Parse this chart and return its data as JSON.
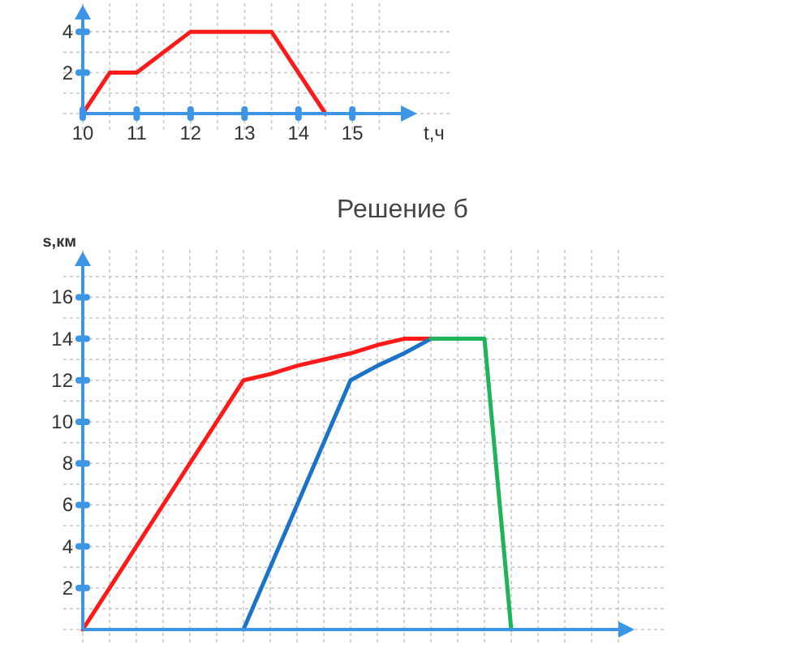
{
  "chart_data": [
    {
      "type": "line",
      "xlabel": "t,ч",
      "x": [
        10,
        10.5,
        11,
        12,
        13.5,
        14.5
      ],
      "xlim": [
        10,
        15.9
      ],
      "ylim": [
        0,
        4.6
      ],
      "xticks": [
        10,
        11,
        12,
        13,
        14,
        15
      ],
      "yticks": [
        2,
        4
      ],
      "grid": true,
      "marker": "none",
      "line_style": "solid",
      "series": [
        {
          "color": "#ff1a1a",
          "values": [
            0,
            2,
            2,
            4,
            4,
            0
          ]
        }
      ]
    },
    {
      "type": "line",
      "title": "Решение б",
      "ylabel": "s,км",
      "categories": [
        null,
        null,
        null,
        null,
        null,
        null,
        null,
        null,
        null,
        null,
        null,
        null,
        null,
        null,
        null,
        null,
        null,
        null,
        null,
        null,
        null
      ],
      "ylim": [
        0,
        17.5
      ],
      "yticks": [
        2,
        4,
        6,
        8,
        10,
        12,
        14,
        16
      ],
      "grid": true,
      "marker": "none",
      "line_style": "solid",
      "tick_labels": "y",
      "series": [
        {
          "color": "#ff1a1a",
          "values": [
            0,
            2,
            4,
            6,
            8,
            10,
            12,
            12.3,
            12.7,
            13,
            13.3,
            13.7,
            14,
            14,
            null,
            null,
            null,
            null,
            null,
            null,
            null
          ]
        },
        {
          "color": "#1a73c8",
          "values": [
            null,
            null,
            null,
            null,
            null,
            null,
            0,
            3,
            6,
            9,
            12,
            12.7,
            13.3,
            14,
            null,
            null,
            null,
            null,
            null,
            null,
            null
          ]
        },
        {
          "color": "#1fb35a",
          "values": [
            null,
            null,
            null,
            null,
            null,
            null,
            null,
            null,
            null,
            null,
            null,
            null,
            null,
            14,
            14,
            14,
            0,
            null,
            null,
            null,
            null
          ]
        }
      ]
    }
  ]
}
